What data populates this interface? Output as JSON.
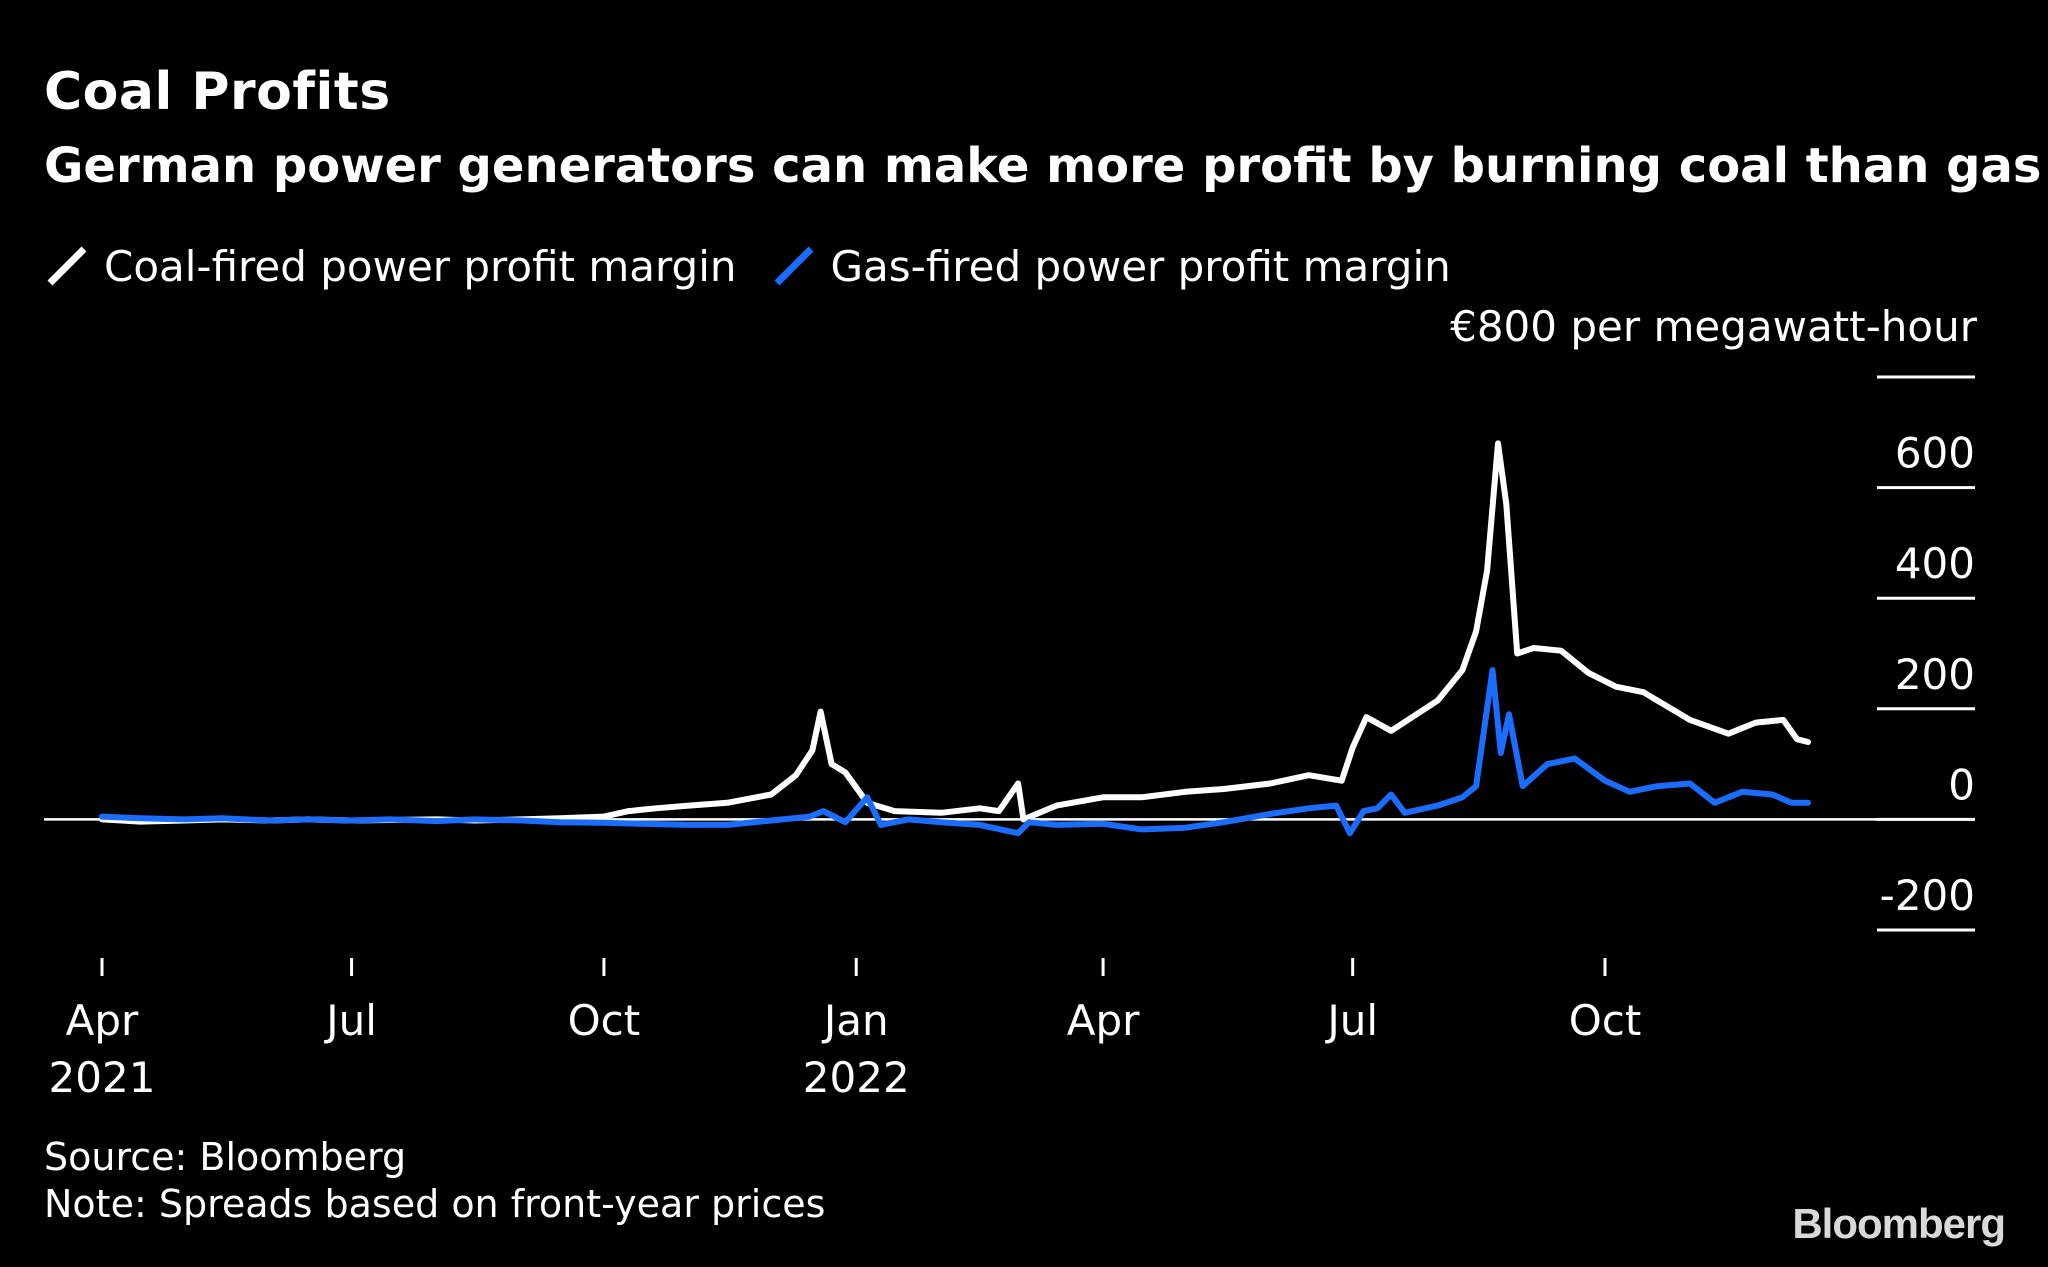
{
  "chart_data": {
    "type": "line",
    "title": "Coal Profits",
    "subtitle": "German power generators can make more profit by burning coal than gas",
    "unit_label": "€800 per megawatt-hour",
    "ylim": [
      -200,
      800
    ],
    "yticks": [
      800,
      600,
      400,
      200,
      0,
      -200
    ],
    "ytick_labels": [
      "",
      "600",
      "400",
      "200",
      "0",
      "-200"
    ],
    "xlim": [
      "2021-04-01",
      "2022-12-31"
    ],
    "xticks": [
      {
        "date": "2021-04-01",
        "label": "Apr",
        "sublabel": "2021"
      },
      {
        "date": "2021-07-01",
        "label": "Jul",
        "sublabel": ""
      },
      {
        "date": "2021-10-01",
        "label": "Oct",
        "sublabel": ""
      },
      {
        "date": "2022-01-01",
        "label": "Jan",
        "sublabel": "2022"
      },
      {
        "date": "2022-04-01",
        "label": "Apr",
        "sublabel": ""
      },
      {
        "date": "2022-07-01",
        "label": "Jul",
        "sublabel": ""
      },
      {
        "date": "2022-10-01",
        "label": "Oct",
        "sublabel": ""
      }
    ],
    "grid": "horizontal-right",
    "legend_placement": "top-left",
    "series": [
      {
        "name": "Coal-fired power profit margin",
        "color": "#ffffff",
        "points": [
          [
            "2021-04-01",
            0
          ],
          [
            "2021-04-15",
            -4
          ],
          [
            "2021-05-01",
            -2
          ],
          [
            "2021-05-15",
            0
          ],
          [
            "2021-06-01",
            -2
          ],
          [
            "2021-06-15",
            0
          ],
          [
            "2021-07-01",
            -2
          ],
          [
            "2021-07-15",
            -1
          ],
          [
            "2021-08-01",
            0
          ],
          [
            "2021-08-15",
            -2
          ],
          [
            "2021-09-01",
            0
          ],
          [
            "2021-09-15",
            2
          ],
          [
            "2021-10-01",
            5
          ],
          [
            "2021-10-10",
            15
          ],
          [
            "2021-10-20",
            20
          ],
          [
            "2021-11-01",
            25
          ],
          [
            "2021-11-15",
            30
          ],
          [
            "2021-12-01",
            45
          ],
          [
            "2021-12-10",
            80
          ],
          [
            "2021-12-16",
            125
          ],
          [
            "2021-12-19",
            195
          ],
          [
            "2021-12-23",
            100
          ],
          [
            "2021-12-28",
            85
          ],
          [
            "2022-01-05",
            30
          ],
          [
            "2022-01-15",
            15
          ],
          [
            "2022-02-01",
            12
          ],
          [
            "2022-02-15",
            20
          ],
          [
            "2022-02-22",
            15
          ],
          [
            "2022-03-01",
            65
          ],
          [
            "2022-03-03",
            0
          ],
          [
            "2022-03-15",
            25
          ],
          [
            "2022-04-01",
            40
          ],
          [
            "2022-04-15",
            40
          ],
          [
            "2022-05-01",
            50
          ],
          [
            "2022-05-15",
            55
          ],
          [
            "2022-06-01",
            65
          ],
          [
            "2022-06-15",
            80
          ],
          [
            "2022-06-27",
            70
          ],
          [
            "2022-07-01",
            130
          ],
          [
            "2022-07-06",
            185
          ],
          [
            "2022-07-15",
            160
          ],
          [
            "2022-08-01",
            215
          ],
          [
            "2022-08-10",
            270
          ],
          [
            "2022-08-15",
            340
          ],
          [
            "2022-08-19",
            450
          ],
          [
            "2022-08-23",
            680
          ],
          [
            "2022-08-26",
            570
          ],
          [
            "2022-08-30",
            300
          ],
          [
            "2022-09-05",
            310
          ],
          [
            "2022-09-15",
            305
          ],
          [
            "2022-09-25",
            265
          ],
          [
            "2022-10-05",
            240
          ],
          [
            "2022-10-15",
            230
          ],
          [
            "2022-11-01",
            180
          ],
          [
            "2022-11-15",
            155
          ],
          [
            "2022-11-25",
            175
          ],
          [
            "2022-12-05",
            180
          ],
          [
            "2022-12-10",
            145
          ],
          [
            "2022-12-14",
            140
          ]
        ]
      },
      {
        "name": "Gas-fired power profit margin",
        "color": "#1a6dff",
        "points": [
          [
            "2021-04-01",
            5
          ],
          [
            "2021-04-15",
            2
          ],
          [
            "2021-05-01",
            0
          ],
          [
            "2021-05-15",
            2
          ],
          [
            "2021-06-01",
            -2
          ],
          [
            "2021-06-15",
            0
          ],
          [
            "2021-07-01",
            -2
          ],
          [
            "2021-07-15",
            0
          ],
          [
            "2021-08-01",
            -3
          ],
          [
            "2021-08-15",
            0
          ],
          [
            "2021-09-01",
            -2
          ],
          [
            "2021-09-15",
            -5
          ],
          [
            "2021-10-01",
            -6
          ],
          [
            "2021-10-15",
            -8
          ],
          [
            "2021-11-01",
            -10
          ],
          [
            "2021-11-15",
            -10
          ],
          [
            "2021-12-01",
            -2
          ],
          [
            "2021-12-15",
            5
          ],
          [
            "2021-12-20",
            15
          ],
          [
            "2021-12-28",
            -5
          ],
          [
            "2022-01-05",
            40
          ],
          [
            "2022-01-10",
            -10
          ],
          [
            "2022-01-20",
            0
          ],
          [
            "2022-02-01",
            -5
          ],
          [
            "2022-02-15",
            -10
          ],
          [
            "2022-03-01",
            -25
          ],
          [
            "2022-03-05",
            -5
          ],
          [
            "2022-03-15",
            -10
          ],
          [
            "2022-04-01",
            -8
          ],
          [
            "2022-04-15",
            -18
          ],
          [
            "2022-05-01",
            -15
          ],
          [
            "2022-05-15",
            -5
          ],
          [
            "2022-06-01",
            10
          ],
          [
            "2022-06-15",
            20
          ],
          [
            "2022-06-25",
            25
          ],
          [
            "2022-06-30",
            -25
          ],
          [
            "2022-07-05",
            15
          ],
          [
            "2022-07-10",
            20
          ],
          [
            "2022-07-15",
            45
          ],
          [
            "2022-07-20",
            12
          ],
          [
            "2022-08-01",
            25
          ],
          [
            "2022-08-10",
            40
          ],
          [
            "2022-08-15",
            60
          ],
          [
            "2022-08-21",
            270
          ],
          [
            "2022-08-24",
            120
          ],
          [
            "2022-08-27",
            190
          ],
          [
            "2022-09-01",
            60
          ],
          [
            "2022-09-10",
            100
          ],
          [
            "2022-09-20",
            110
          ],
          [
            "2022-10-01",
            70
          ],
          [
            "2022-10-10",
            50
          ],
          [
            "2022-10-20",
            60
          ],
          [
            "2022-11-01",
            65
          ],
          [
            "2022-11-10",
            30
          ],
          [
            "2022-11-20",
            50
          ],
          [
            "2022-12-01",
            45
          ],
          [
            "2022-12-08",
            30
          ],
          [
            "2022-12-14",
            30
          ]
        ]
      }
    ]
  },
  "footer": {
    "source": "Source: Bloomberg",
    "note": "Note: Spreads based on front-year prices"
  },
  "branding": {
    "logo_text": "Bloomberg"
  }
}
